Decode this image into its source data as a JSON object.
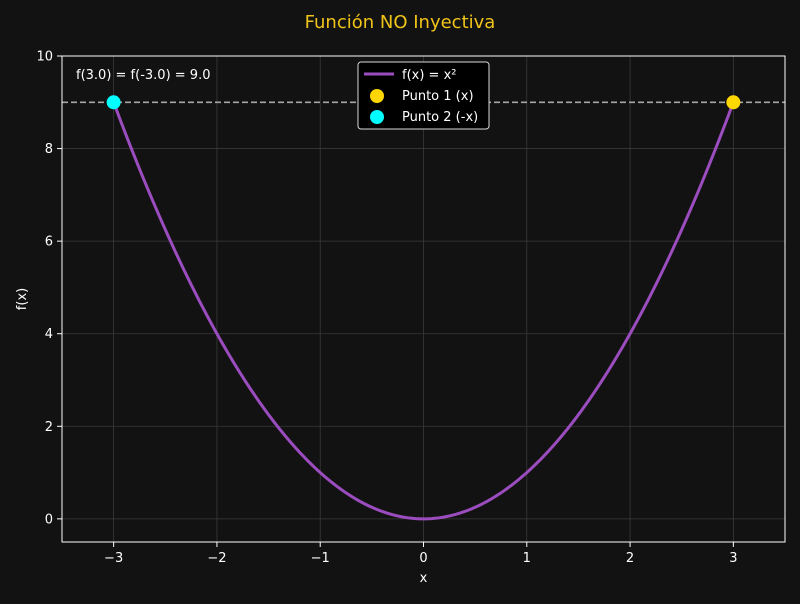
{
  "chart_data": {
    "type": "line",
    "title": "Función NO Inyectiva",
    "xlabel": "x",
    "ylabel": "f(x)",
    "xlim": [
      -3.5,
      3.5
    ],
    "ylim": [
      -0.5,
      10
    ],
    "xticks": [
      -3,
      -2,
      -1,
      0,
      1,
      2,
      3
    ],
    "xtick_labels": [
      "−3",
      "−2",
      "−1",
      "0",
      "1",
      "2",
      "3"
    ],
    "yticks": [
      0,
      2,
      4,
      6,
      8,
      10
    ],
    "ytick_labels": [
      "0",
      "2",
      "4",
      "6",
      "8",
      "10"
    ],
    "grid": true,
    "series": [
      {
        "name": "f(x) = x²",
        "kind": "line",
        "function": "x^2",
        "domain": [
          -3,
          3
        ],
        "color": "#9b4dbf"
      },
      {
        "name": "Punto 1 (x)",
        "kind": "scatter",
        "points": [
          {
            "x": 3.0,
            "y": 9.0
          }
        ],
        "color": "#ffd700"
      },
      {
        "name": "Punto 2 (-x)",
        "kind": "scatter",
        "points": [
          {
            "x": -3.0,
            "y": 9.0
          }
        ],
        "color": "#00ffff"
      }
    ],
    "reference_lines": [
      {
        "orientation": "horizontal",
        "y": 9.0,
        "style": "dashed",
        "color": "#a6a6a6"
      }
    ],
    "annotation": "f(3.0) = f(-3.0) = 9.0",
    "legend_position": "upper-center"
  },
  "colors": {
    "background": "#121212",
    "title": "#f0c419",
    "text": "#ffffff",
    "grid": "#3a3a3a",
    "axes": "#ffffff"
  }
}
